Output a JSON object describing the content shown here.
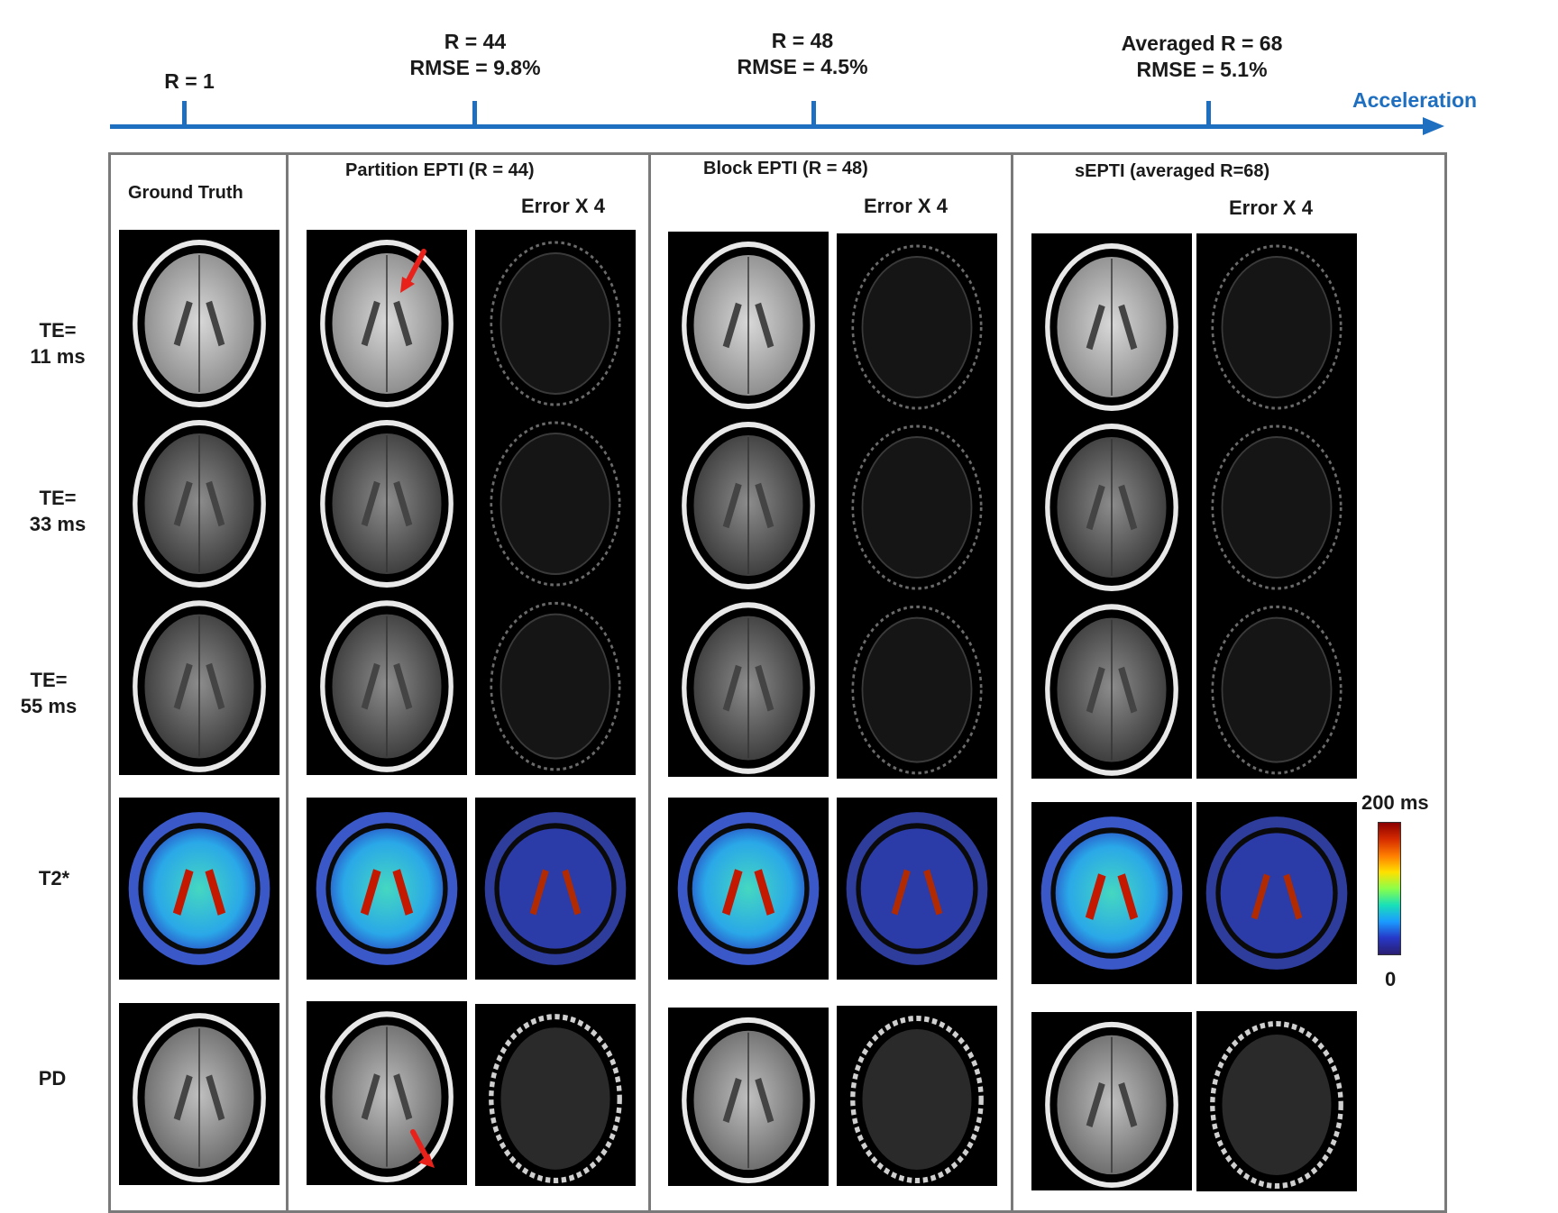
{
  "axis": {
    "label": "Acceleration",
    "ticks": [
      {
        "line1": "R = 1",
        "line2": ""
      },
      {
        "line1": "R = 44",
        "line2": "RMSE = 9.8%"
      },
      {
        "line1": "R = 48",
        "line2": "RMSE = 4.5%"
      },
      {
        "line1": "Averaged R = 68",
        "line2": "RMSE = 5.1%"
      }
    ]
  },
  "panels": [
    {
      "title": "Ground Truth"
    },
    {
      "title": "Partition EPTI (R = 44)",
      "error_label": "Error X 4"
    },
    {
      "title": "Block EPTI (R = 48)",
      "error_label": "Error X 4"
    },
    {
      "title": "sEPTI (averaged R=68)",
      "error_label": "Error X 4"
    }
  ],
  "rows": [
    {
      "line1": "TE=",
      "line2": "11 ms"
    },
    {
      "line1": "TE=",
      "line2": "33 ms"
    },
    {
      "line1": "TE=",
      "line2": "55 ms"
    },
    {
      "line1": "T2*",
      "line2": ""
    },
    {
      "line1": "PD",
      "line2": ""
    }
  ],
  "colorbar": {
    "max_label": "200 ms",
    "min_label": "0"
  },
  "colors": {
    "accent": "#1f6fc1",
    "arrow": "#e8221b",
    "panel_border": "#7a7a7a"
  }
}
